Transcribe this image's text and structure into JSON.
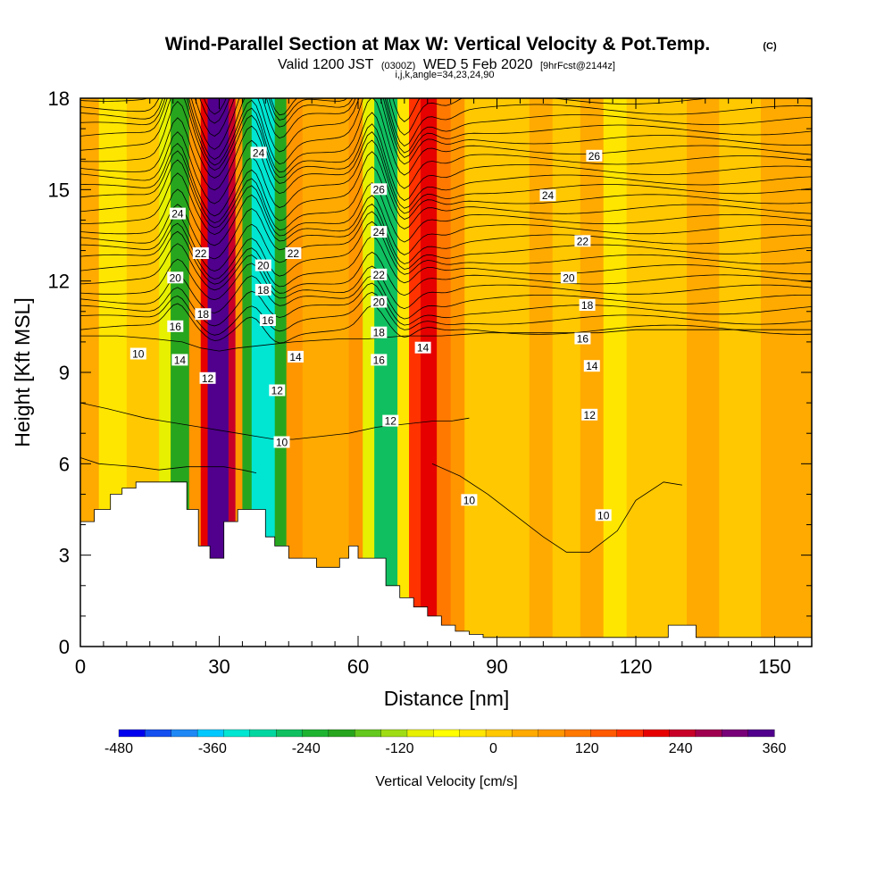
{
  "title": {
    "main": "Wind-Parallel Section at Max W: Vertical Velocity & Pot.Temp.",
    "copyright": "(C)",
    "valid_prefix": "Valid 1200 JST",
    "valid_utc": "(0300Z)",
    "valid_date": "WED 5 Feb 2020",
    "forecast": "[9hrFcst@2144z]",
    "indices": "i,j,k,angle=34,23,24,90"
  },
  "chart_data": {
    "type": "heatmap",
    "xlabel": "Distance [nm]",
    "ylabel": "Height [Kft MSL]",
    "xlim": [
      0,
      158
    ],
    "ylim": [
      0,
      18
    ],
    "x_ticks": [
      0,
      30,
      60,
      90,
      120,
      150
    ],
    "x_tick_labels": [
      "0",
      "30",
      "60",
      "90",
      "120",
      "150"
    ],
    "y_ticks": [
      0,
      3,
      6,
      9,
      12,
      15,
      18
    ],
    "y_tick_labels": [
      "0",
      "3",
      "6",
      "9",
      "12",
      "15",
      "18"
    ],
    "colorbar": {
      "label": "Vertical Velocity [cm/s]",
      "tick_values": [
        -480,
        -360,
        -240,
        -120,
        0,
        120,
        240,
        360
      ],
      "tick_labels": [
        "-480",
        "-360",
        "-240",
        "-120",
        "0",
        "120",
        "240",
        "360"
      ],
      "colors": [
        "#0000ee",
        "#1450f0",
        "#1e88f5",
        "#00c8ff",
        "#00e6d2",
        "#00d7a0",
        "#10c060",
        "#1eb432",
        "#28a51e",
        "#64c81e",
        "#a0dc14",
        "#e6f000",
        "#ffff00",
        "#ffe600",
        "#ffc800",
        "#ffaa00",
        "#ff9600",
        "#ff7800",
        "#ff5a00",
        "#ff3200",
        "#e60000",
        "#c80028",
        "#a00050",
        "#780078",
        "#50008c"
      ]
    },
    "velocity_bands": [
      {
        "x_from": 0,
        "x_to": 4,
        "value": 30
      },
      {
        "x_from": 4,
        "x_to": 10,
        "value": -20
      },
      {
        "x_from": 10,
        "x_to": 17,
        "value": 10
      },
      {
        "x_from": 17,
        "x_to": 19.5,
        "value": -80
      },
      {
        "x_from": 19.5,
        "x_to": 23.5,
        "value": -200
      },
      {
        "x_from": 23.5,
        "x_to": 26,
        "value": 60
      },
      {
        "x_from": 26,
        "x_to": 27.5,
        "value": 220
      },
      {
        "x_from": 27.5,
        "x_to": 32,
        "value": 360
      },
      {
        "x_from": 32,
        "x_to": 33.5,
        "value": 240
      },
      {
        "x_from": 33.5,
        "x_to": 35,
        "value": 80
      },
      {
        "x_from": 35,
        "x_to": 37,
        "value": -200
      },
      {
        "x_from": 37,
        "x_to": 42,
        "value": -340
      },
      {
        "x_from": 42,
        "x_to": 44.5,
        "value": -200
      },
      {
        "x_from": 44.5,
        "x_to": 48,
        "value": 80
      },
      {
        "x_from": 48,
        "x_to": 58,
        "value": 30
      },
      {
        "x_from": 58,
        "x_to": 61,
        "value": 60
      },
      {
        "x_from": 61,
        "x_to": 63.5,
        "value": -80
      },
      {
        "x_from": 63.5,
        "x_to": 68.5,
        "value": -260
      },
      {
        "x_from": 68.5,
        "x_to": 71,
        "value": -40
      },
      {
        "x_from": 71,
        "x_to": 73.5,
        "value": 180
      },
      {
        "x_from": 73.5,
        "x_to": 77,
        "value": 220
      },
      {
        "x_from": 77,
        "x_to": 80,
        "value": 120
      },
      {
        "x_from": 80,
        "x_to": 83,
        "value": 60
      },
      {
        "x_from": 83,
        "x_to": 97,
        "value": 20
      },
      {
        "x_from": 97,
        "x_to": 102,
        "value": 40
      },
      {
        "x_from": 102,
        "x_to": 108,
        "value": 20
      },
      {
        "x_from": 108,
        "x_to": 113,
        "value": 50
      },
      {
        "x_from": 113,
        "x_to": 118,
        "value": -10
      },
      {
        "x_from": 118,
        "x_to": 131,
        "value": 20
      },
      {
        "x_from": 131,
        "x_to": 138,
        "value": 50
      },
      {
        "x_from": 138,
        "x_to": 147,
        "value": 20
      },
      {
        "x_from": 147,
        "x_to": 158,
        "value": 40
      }
    ],
    "terrain": {
      "x": [
        0,
        3,
        3,
        6.5,
        6.5,
        9,
        9,
        12,
        12,
        23,
        23,
        25.5,
        25.5,
        28,
        28,
        31,
        31,
        34,
        34,
        40,
        40,
        42,
        42,
        45,
        45,
        51,
        51,
        56,
        56,
        58,
        58,
        60,
        60,
        66,
        66,
        69,
        69,
        72,
        72,
        75,
        75,
        78,
        78,
        81,
        81,
        84,
        84,
        87,
        87,
        90,
        90,
        127,
        127,
        133,
        133,
        158
      ],
      "y": [
        4.1,
        4.1,
        4.5,
        4.5,
        5.0,
        5.0,
        5.2,
        5.2,
        5.4,
        5.4,
        4.5,
        4.5,
        3.3,
        3.3,
        2.9,
        2.9,
        4.1,
        4.1,
        4.5,
        4.5,
        3.6,
        3.6,
        3.3,
        3.3,
        2.9,
        2.9,
        2.6,
        2.6,
        2.9,
        2.9,
        3.3,
        3.3,
        2.9,
        2.9,
        2.0,
        2.0,
        1.6,
        1.6,
        1.3,
        1.3,
        1.0,
        1.0,
        0.7,
        0.7,
        0.5,
        0.5,
        0.4,
        0.4,
        0.3,
        0.3,
        0.3,
        0.3,
        0.7,
        0.7,
        0.3,
        0.3
      ]
    },
    "theta_contours": [
      {
        "label": "10",
        "label_at": [
          12,
          9.6
        ],
        "x": [
          0,
          8,
          16,
          22,
          26,
          30,
          34,
          40,
          46,
          56,
          62,
          70,
          78,
          88,
          96,
          104,
          112,
          120,
          128,
          136,
          144,
          152,
          158
        ],
        "y": [
          10.2,
          10.2,
          10.1,
          10.0,
          9.8,
          9.7,
          9.8,
          9.9,
          10.0,
          10.1,
          10.1,
          10.2,
          10.2,
          10.3,
          10.3,
          10.3,
          10.3,
          10.4,
          10.4,
          10.4,
          10.4,
          10.4,
          10.4
        ]
      },
      {
        "label": "10",
        "label_at": [
          43,
          6.7
        ],
        "x": [
          0,
          6,
          14,
          18,
          22,
          26,
          30,
          34,
          38,
          42,
          46,
          52,
          58,
          64,
          70,
          76,
          80,
          84
        ],
        "y": [
          8.0,
          7.8,
          7.5,
          7.4,
          7.3,
          7.2,
          7.1,
          7.0,
          6.9,
          6.8,
          6.8,
          6.9,
          7.0,
          7.2,
          7.3,
          7.4,
          7.4,
          7.5
        ]
      },
      {
        "label": "10",
        "label_at": [
          84,
          4.8
        ],
        "x": [
          0,
          4,
          12,
          17,
          23,
          31,
          35,
          38
        ],
        "y": [
          6.2,
          6.0,
          5.9,
          5.8,
          5.9,
          5.9,
          5.8,
          5.7
        ]
      },
      {
        "label": "10",
        "label_at": [
          113,
          4.3
        ],
        "x": [
          76,
          82,
          88,
          94,
          100,
          105,
          110,
          116,
          120,
          126,
          130
        ],
        "y": [
          6.0,
          5.6,
          5.0,
          4.3,
          3.6,
          3.1,
          3.1,
          3.8,
          4.8,
          5.4,
          5.3
        ]
      }
    ],
    "contour_labels": [
      {
        "label": "24",
        "x": 21,
        "y": 14.2
      },
      {
        "label": "22",
        "x": 26,
        "y": 12.9
      },
      {
        "label": "20",
        "x": 20.5,
        "y": 12.1
      },
      {
        "label": "18",
        "x": 26.5,
        "y": 10.9
      },
      {
        "label": "16",
        "x": 20.5,
        "y": 10.5
      },
      {
        "label": "14",
        "x": 21.5,
        "y": 9.4
      },
      {
        "label": "12",
        "x": 27.5,
        "y": 8.8
      },
      {
        "label": "10",
        "x": 12.5,
        "y": 9.6
      },
      {
        "label": "24",
        "x": 38.5,
        "y": 16.2
      },
      {
        "label": "22",
        "x": 46,
        "y": 12.9
      },
      {
        "label": "20",
        "x": 39.5,
        "y": 12.5
      },
      {
        "label": "18",
        "x": 39.5,
        "y": 11.7
      },
      {
        "label": "16",
        "x": 40.5,
        "y": 10.7
      },
      {
        "label": "14",
        "x": 46.5,
        "y": 9.5
      },
      {
        "label": "12",
        "x": 42.5,
        "y": 8.4
      },
      {
        "label": "10",
        "x": 43.5,
        "y": 6.7
      },
      {
        "label": "26",
        "x": 64.5,
        "y": 15.0
      },
      {
        "label": "24",
        "x": 64.5,
        "y": 13.6
      },
      {
        "label": "22",
        "x": 64.5,
        "y": 12.2
      },
      {
        "label": "20",
        "x": 64.5,
        "y": 11.3
      },
      {
        "label": "18",
        "x": 64.5,
        "y": 10.3
      },
      {
        "label": "16",
        "x": 64.5,
        "y": 9.4
      },
      {
        "label": "12",
        "x": 67,
        "y": 7.4
      },
      {
        "label": "14",
        "x": 74,
        "y": 9.8
      },
      {
        "label": "26",
        "x": 111,
        "y": 16.1
      },
      {
        "label": "24",
        "x": 101,
        "y": 14.8
      },
      {
        "label": "22",
        "x": 108.5,
        "y": 13.3
      },
      {
        "label": "20",
        "x": 105.5,
        "y": 12.1
      },
      {
        "label": "18",
        "x": 109.5,
        "y": 11.2
      },
      {
        "label": "16",
        "x": 108.5,
        "y": 10.1
      },
      {
        "label": "14",
        "x": 110.5,
        "y": 9.2
      },
      {
        "label": "12",
        "x": 110,
        "y": 7.6
      },
      {
        "label": "10",
        "x": 84,
        "y": 4.8
      },
      {
        "label": "10",
        "x": 113,
        "y": 4.3
      }
    ]
  }
}
